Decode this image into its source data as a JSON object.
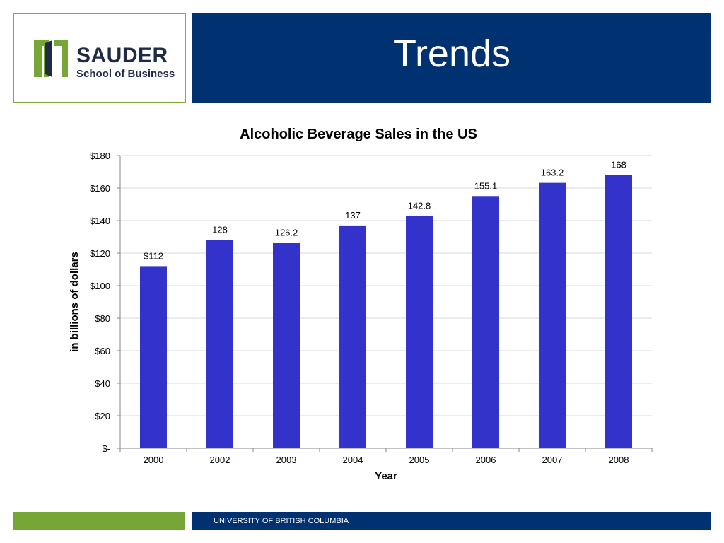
{
  "header": {
    "logo_name": "SAUDER",
    "logo_sub": "School of Business",
    "title": "Trends"
  },
  "footer": {
    "text": "UNIVERSITY OF BRITISH COLUMBIA"
  },
  "colors": {
    "brand_blue": "#003170",
    "brand_green": "#76a736",
    "bar": "#3333cc"
  },
  "chart_data": {
    "type": "bar",
    "title": "Alcoholic Beverage Sales in the US",
    "xlabel": "Year",
    "ylabel": "in billions of dollars",
    "categories": [
      "2000",
      "2002",
      "2003",
      "2004",
      "2005",
      "2006",
      "2007",
      "2008"
    ],
    "values": [
      112,
      128,
      126.2,
      137,
      142.8,
      155.1,
      163.2,
      168
    ],
    "data_labels": [
      "$112",
      "128",
      "126.2",
      "137",
      "142.8",
      "155.1",
      "163.2",
      "168"
    ],
    "ylim": [
      0,
      180
    ],
    "yticks": [
      0,
      20,
      40,
      60,
      80,
      100,
      120,
      140,
      160,
      180
    ],
    "ytick_labels": [
      "$-",
      "$20",
      "$40",
      "$60",
      "$80",
      "$100",
      "$120",
      "$140",
      "$160",
      "$180"
    ],
    "grid": true,
    "legend": "none"
  }
}
